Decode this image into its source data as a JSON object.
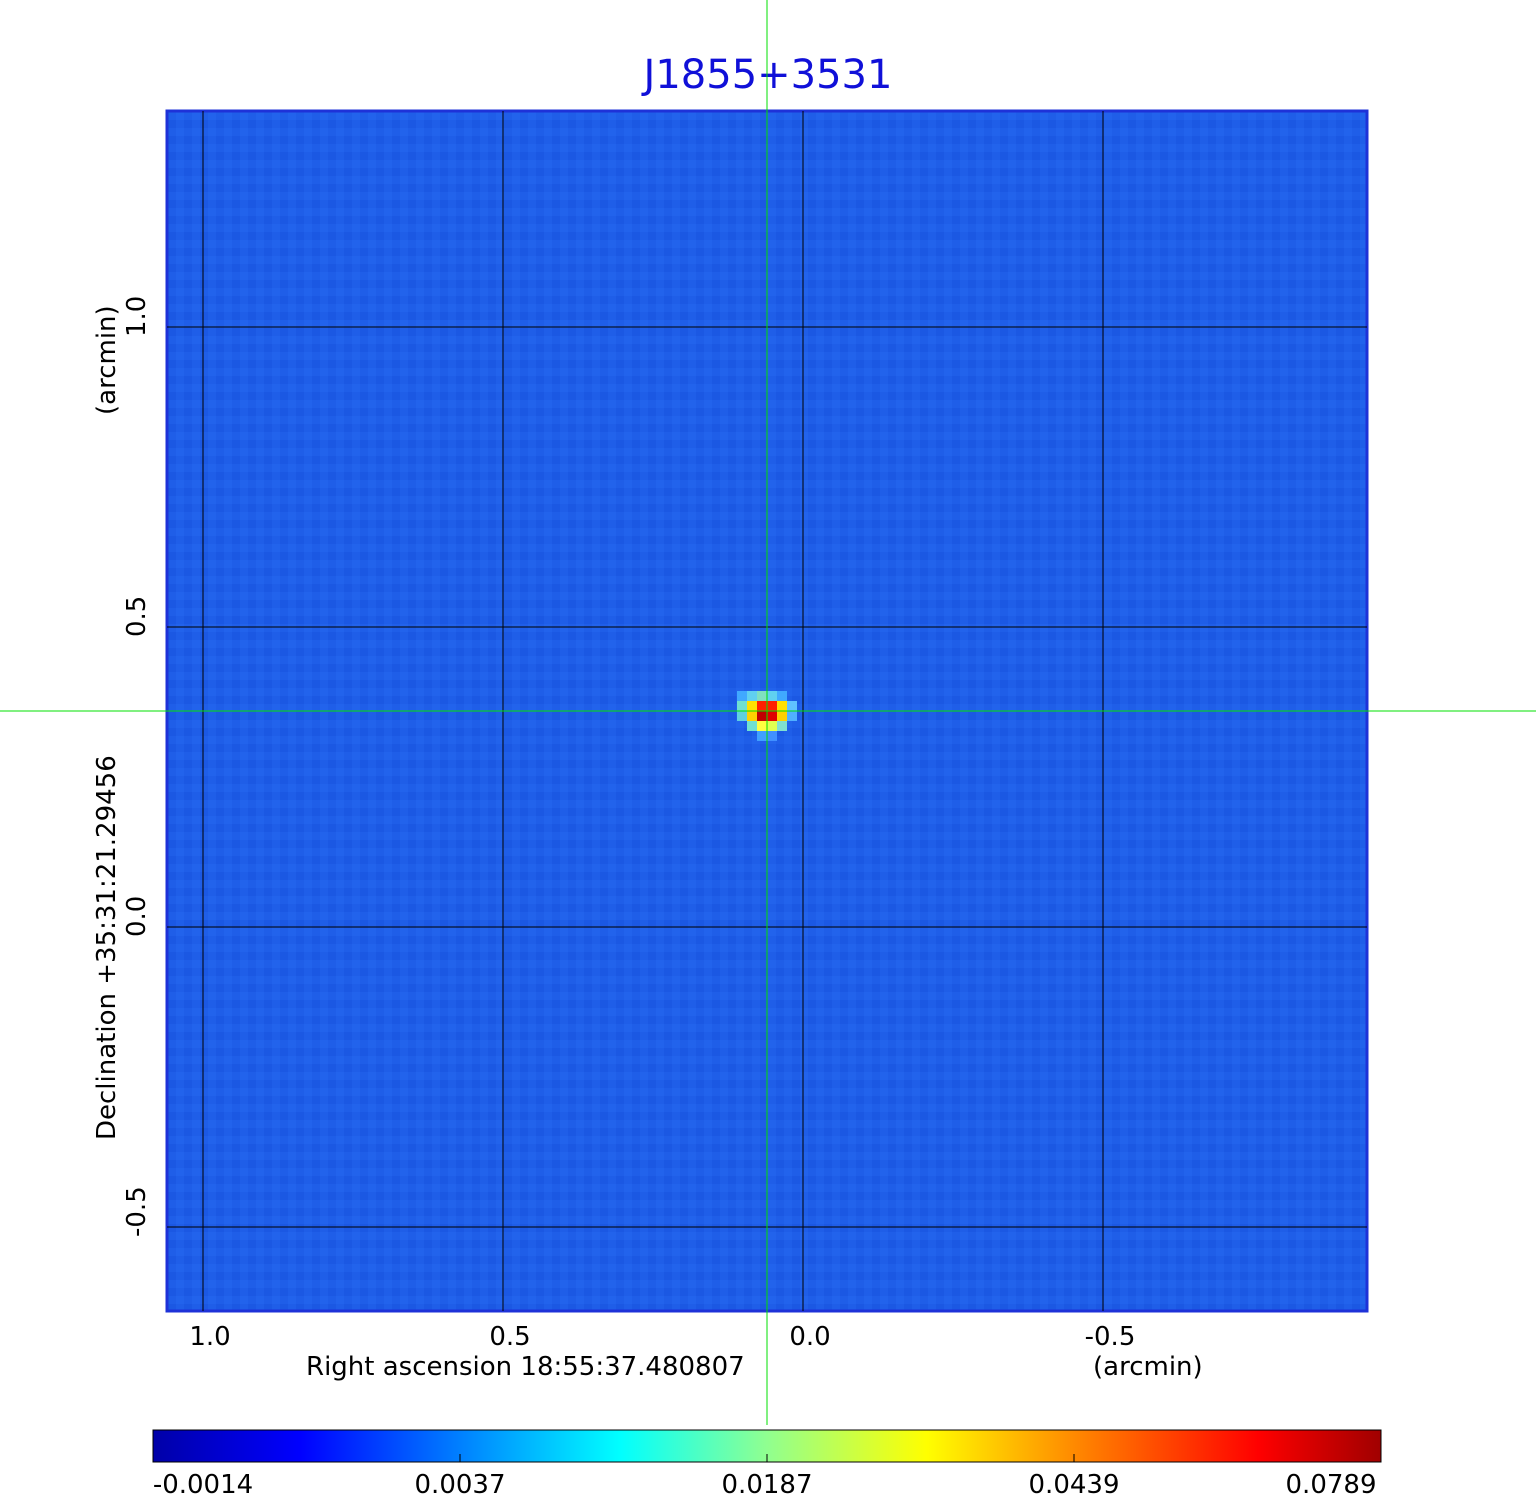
{
  "chart_data": {
    "type": "heatmap",
    "title": "J1855+3531",
    "xlabel": "Right ascension  18:55:37.480807",
    "xunit": "(arcmin)",
    "ylabel": "Declination  +35:31:21.29456",
    "yunit": "(arcmin)",
    "x_ticks": [
      "1.0",
      "0.5",
      "0.0",
      "-0.5"
    ],
    "y_ticks": [
      "1.0",
      "0.5",
      "0.0",
      "-0.5"
    ],
    "x_tick_values": [
      1.0,
      0.5,
      0.0,
      -0.5
    ],
    "y_tick_values": [
      1.0,
      0.5,
      0.0,
      -0.5
    ],
    "xlim": [
      1.06,
      -0.94
    ],
    "ylim": [
      -0.64,
      1.36
    ],
    "grid": true,
    "crosshair": {
      "x": 0.06,
      "y": 0.36,
      "color": "#00e000"
    },
    "source_peak": {
      "x": 0.06,
      "y": 0.36,
      "value": 0.0789
    },
    "colormap": "jet",
    "colorbar_ticks": [
      "-0.0014",
      "0.0037",
      "0.0187",
      "0.0439",
      "0.0789"
    ],
    "colorbar_placement": "bottom"
  }
}
